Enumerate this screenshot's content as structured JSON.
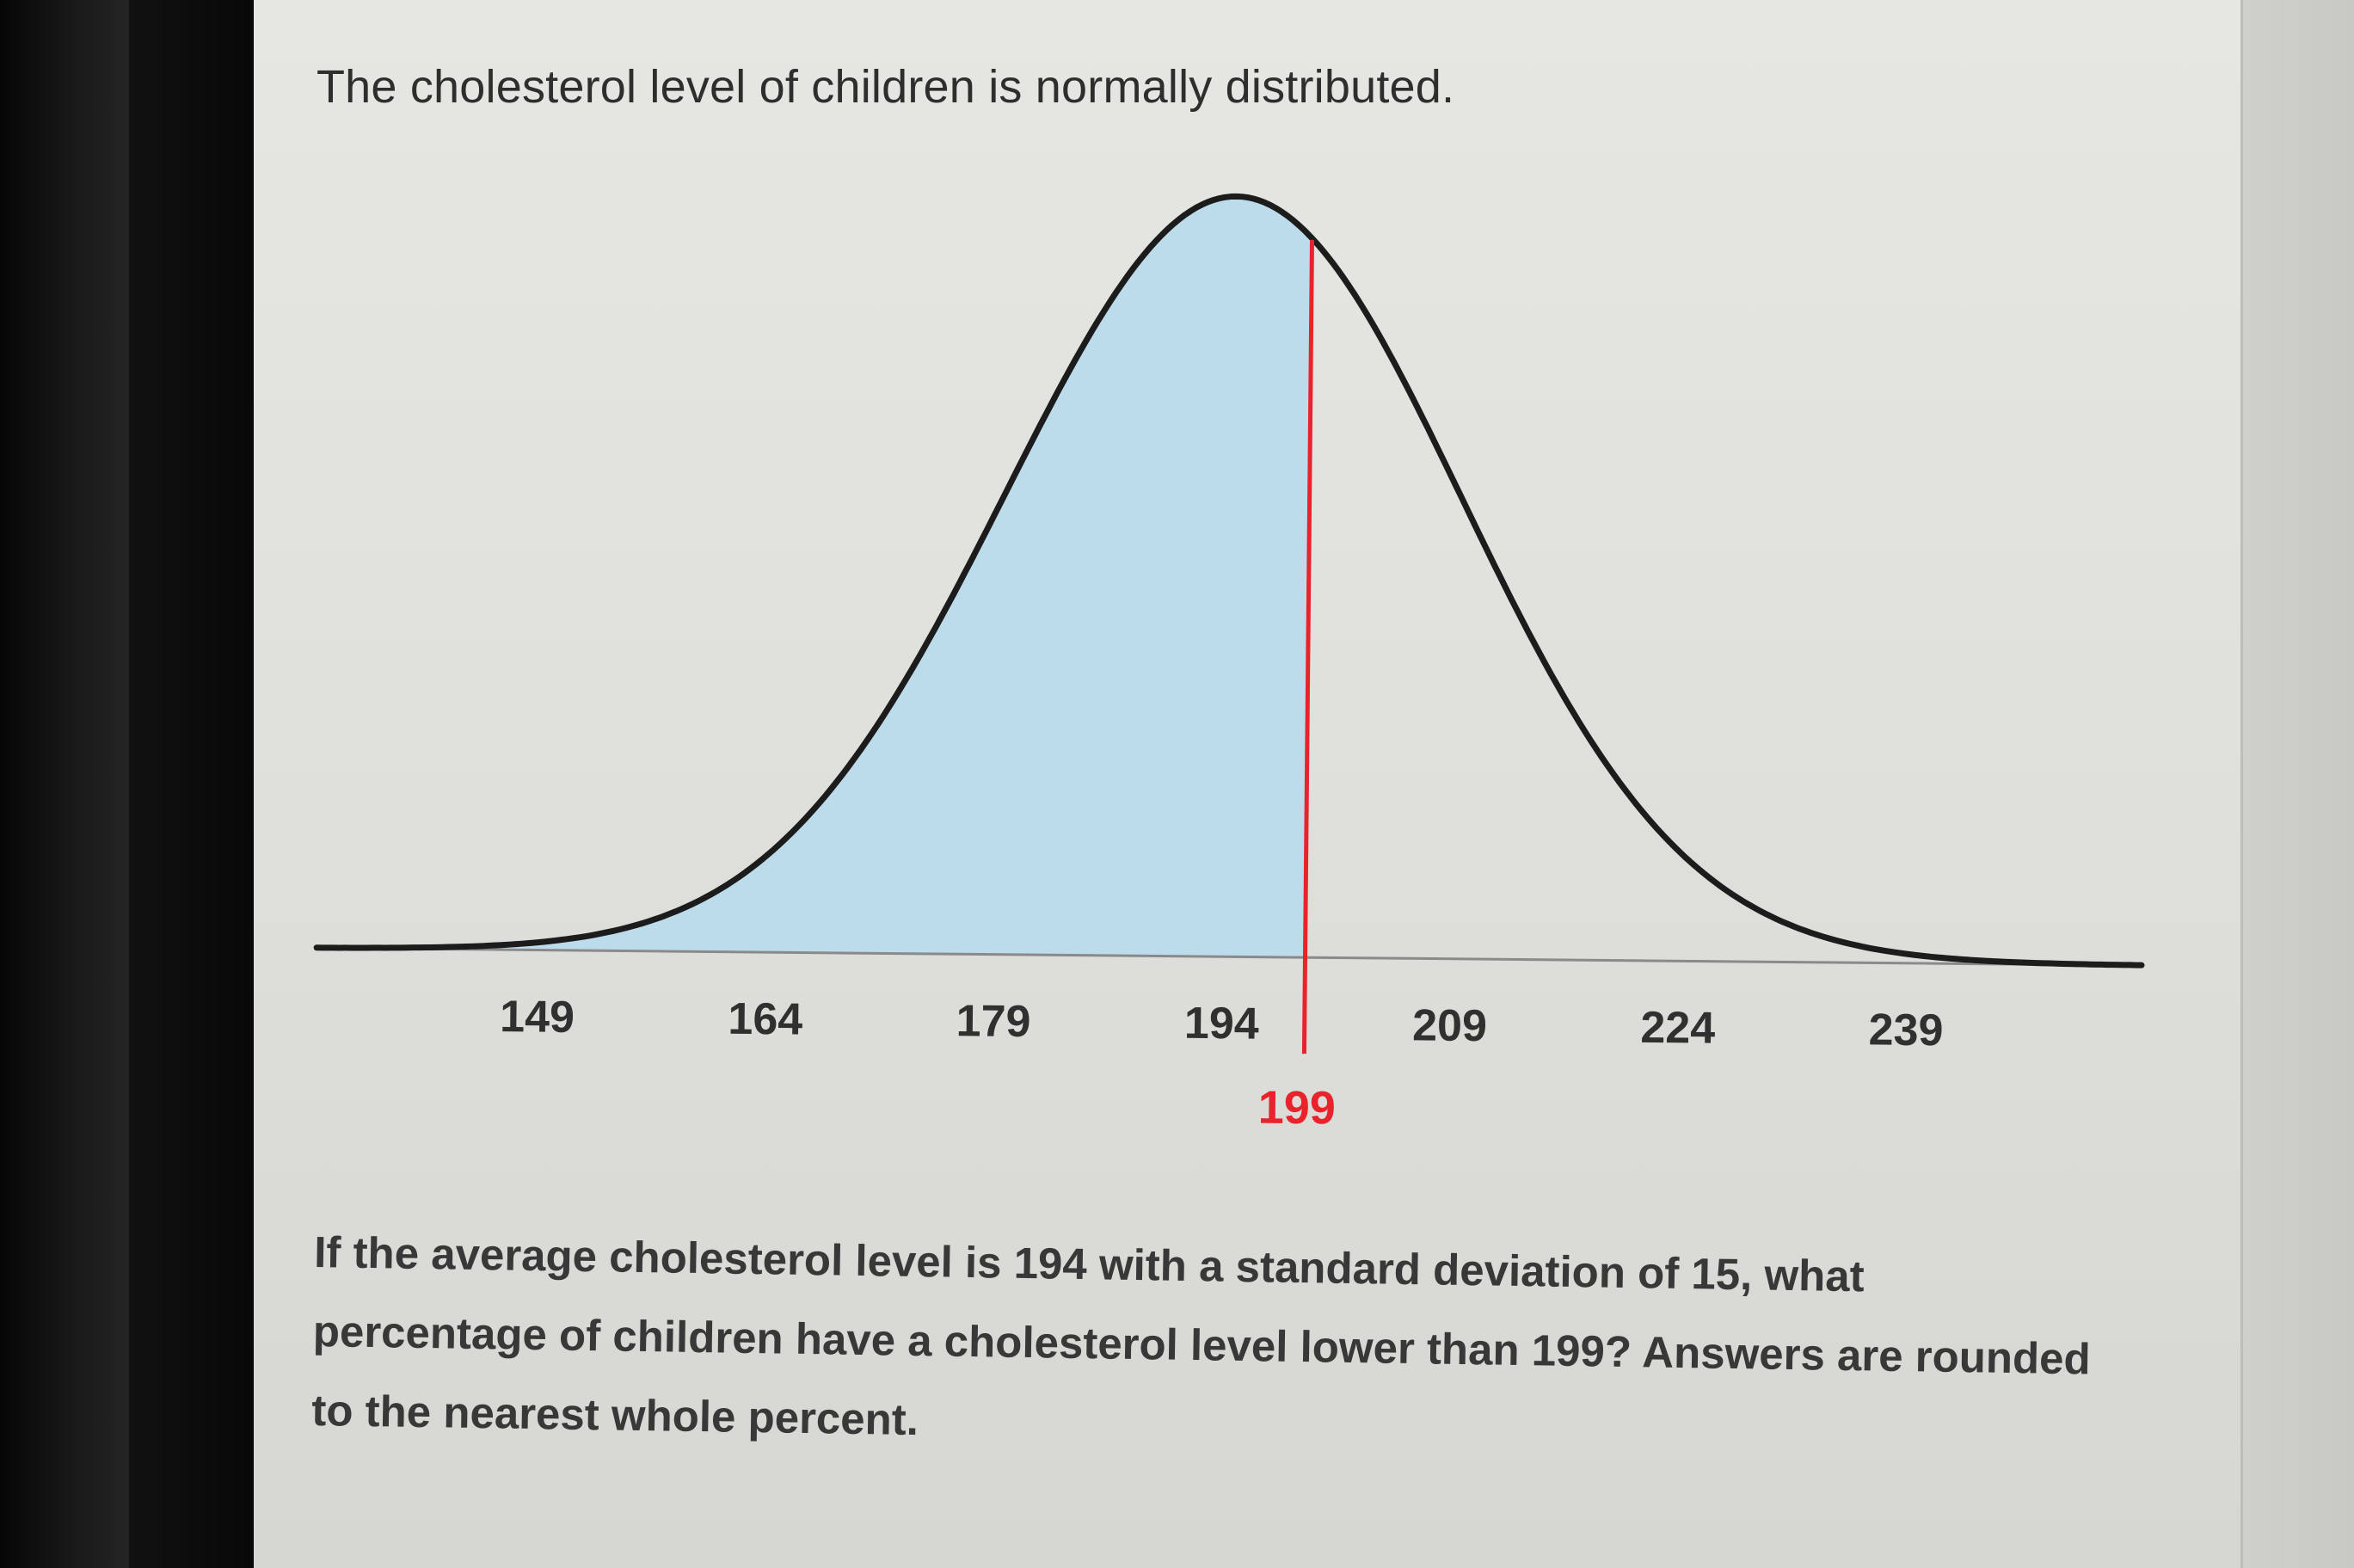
{
  "title": "The cholesterol level of children is normally distributed.",
  "chart_data": {
    "type": "area",
    "distribution": "normal",
    "mean": 194,
    "std_dev": 15,
    "xlim": [
      134,
      254
    ],
    "x_ticks": [
      149,
      164,
      179,
      194,
      209,
      224,
      239
    ],
    "x_tick_labels": [
      "149",
      "164",
      "179",
      "194",
      "209",
      "224",
      "239"
    ],
    "shaded_region": {
      "from": 134,
      "to": 199,
      "color": "#bcdcec"
    },
    "marker": {
      "value": 199,
      "label": "199",
      "color": "#e8232b"
    },
    "curve_color": "#1c1c1c",
    "axis_color": "#8a8a8a",
    "xlabel": "",
    "ylabel": "",
    "grid": false
  },
  "question": "If the average cholesterol level is 194 with a standard deviation of 15, what percentage of children have a cholesterol level lower than 199? Answers are rounded to the nearest whole percent."
}
